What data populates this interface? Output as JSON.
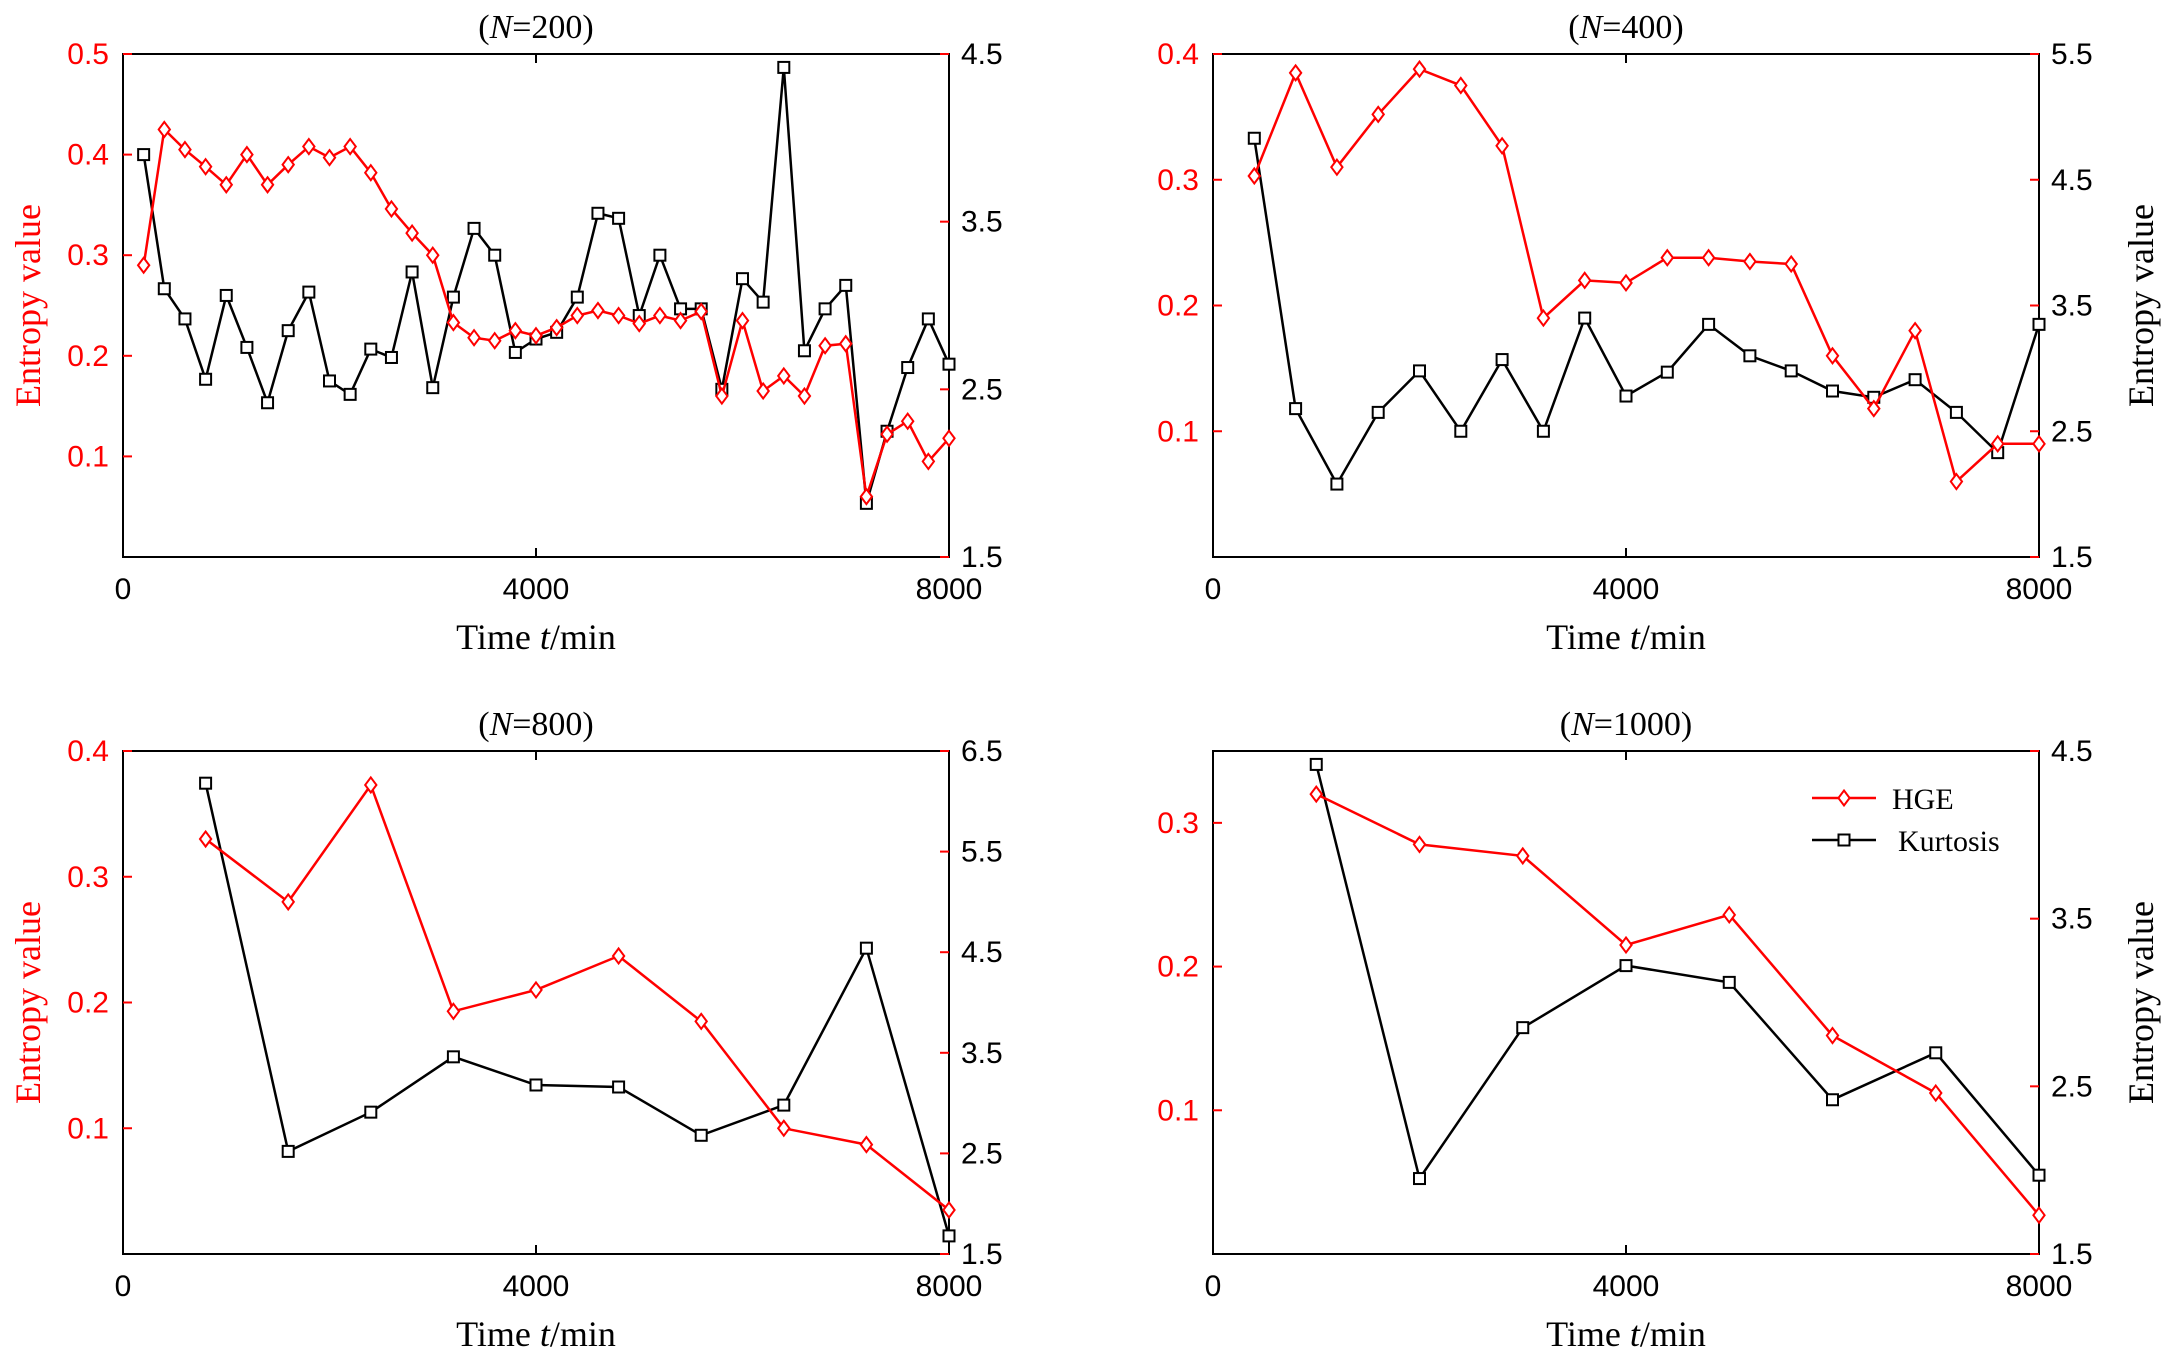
{
  "colors": {
    "hge": "#ff0000",
    "kurtosis": "#000000",
    "axis": "#000000"
  },
  "legend": {
    "placement": "top-right of N=1000 panel",
    "hge_label": "HGE",
    "kurtosis_label": "Kurtosis"
  },
  "chart_data": [
    {
      "type": "line",
      "title_prefix": "(",
      "title_italic": "N",
      "title_suffix": "=200)",
      "xlabel_pre": "Time ",
      "xlabel_italic": "t",
      "xlabel_post": "/min",
      "ylabel_left": "Entropy value",
      "ylabel_right": "",
      "xlim": [
        0,
        8000
      ],
      "xticks": [
        "0",
        "4000",
        "8000"
      ],
      "xtick_values": [
        0,
        4000,
        8000
      ],
      "ylim_left": [
        0,
        0.5
      ],
      "yticks_left": [
        "0.1",
        "0.2",
        "0.3",
        "0.4",
        "0.5"
      ],
      "ytick_values_left": [
        0.1,
        0.2,
        0.3,
        0.4,
        0.5
      ],
      "ylim_right": [
        1.5,
        4.5
      ],
      "yticks_right": [
        "1.5",
        "2.5",
        "3.5",
        "4.5"
      ],
      "ytick_values_right": [
        1.5,
        2.5,
        3.5,
        4.5
      ],
      "series": [
        {
          "name": "HGE",
          "axis": "left",
          "marker": "diamond",
          "x": [
            200,
            400,
            600,
            800,
            1000,
            1200,
            1400,
            1600,
            1800,
            2000,
            2200,
            2400,
            2600,
            2800,
            3000,
            3200,
            3400,
            3600,
            3800,
            4000,
            4200,
            4400,
            4600,
            4800,
            5000,
            5200,
            5400,
            5600,
            5800,
            6000,
            6200,
            6400,
            6600,
            6800,
            7000,
            7200,
            7400,
            7600,
            7800,
            8000
          ],
          "values": [
            0.29,
            0.425,
            0.405,
            0.388,
            0.37,
            0.4,
            0.37,
            0.39,
            0.408,
            0.397,
            0.408,
            0.382,
            0.346,
            0.322,
            0.3,
            0.233,
            0.218,
            0.215,
            0.225,
            0.22,
            0.228,
            0.24,
            0.245,
            0.24,
            0.232,
            0.24,
            0.235,
            0.244,
            0.16,
            0.235,
            0.165,
            0.18,
            0.16,
            0.21,
            0.212,
            0.06,
            0.122,
            0.135,
            0.095,
            0.118
          ]
        },
        {
          "name": "Kurtosis",
          "axis": "right",
          "marker": "square",
          "x": [
            200,
            400,
            600,
            800,
            1000,
            1200,
            1400,
            1600,
            1800,
            2000,
            2200,
            2400,
            2600,
            2800,
            3000,
            3200,
            3400,
            3600,
            3800,
            4000,
            4200,
            4400,
            4600,
            4800,
            5000,
            5200,
            5400,
            5600,
            5800,
            6000,
            6200,
            6400,
            6600,
            6800,
            7000,
            7200,
            7400,
            7600,
            7800,
            8000
          ],
          "values": [
            3.9,
            3.1,
            2.92,
            2.56,
            3.06,
            2.75,
            2.42,
            2.85,
            3.08,
            2.55,
            2.47,
            2.74,
            2.69,
            3.2,
            2.51,
            3.05,
            3.46,
            3.3,
            2.72,
            2.8,
            2.84,
            3.05,
            3.55,
            3.52,
            2.94,
            3.3,
            2.98,
            2.98,
            2.5,
            3.16,
            3.02,
            4.42,
            2.73,
            2.98,
            3.12,
            1.82,
            2.25,
            2.63,
            2.92,
            2.65
          ]
        }
      ]
    },
    {
      "type": "line",
      "title_prefix": "(",
      "title_italic": "N",
      "title_suffix": "=400)",
      "xlabel_pre": "Time ",
      "xlabel_italic": "t",
      "xlabel_post": "/min",
      "ylabel_left": "",
      "ylabel_right": "Entropy value",
      "xlim": [
        0,
        8000
      ],
      "xticks": [
        "0",
        "4000",
        "8000"
      ],
      "xtick_values": [
        0,
        4000,
        8000
      ],
      "ylim_left": [
        0,
        0.4
      ],
      "yticks_left": [
        "0.1",
        "0.2",
        "0.3",
        "0.4"
      ],
      "ytick_values_left": [
        0.1,
        0.2,
        0.3,
        0.4
      ],
      "ylim_right": [
        1.5,
        5.5
      ],
      "yticks_right": [
        "1.5",
        "2.5",
        "3.5",
        "4.5",
        "5.5"
      ],
      "ytick_values_right": [
        1.5,
        2.5,
        3.5,
        4.5,
        5.5
      ],
      "series": [
        {
          "name": "HGE",
          "axis": "left",
          "marker": "diamond",
          "x": [
            400,
            800,
            1200,
            1600,
            2000,
            2400,
            2800,
            3200,
            3600,
            4000,
            4400,
            4800,
            5200,
            5600,
            6000,
            6400,
            6800,
            7200,
            7600,
            8000
          ],
          "values": [
            0.303,
            0.385,
            0.31,
            0.352,
            0.388,
            0.375,
            0.327,
            0.19,
            0.22,
            0.218,
            0.238,
            0.238,
            0.235,
            0.233,
            0.16,
            0.118,
            0.18,
            0.06,
            0.09,
            0.09
          ]
        },
        {
          "name": "Kurtosis",
          "axis": "right",
          "marker": "square",
          "x": [
            400,
            800,
            1200,
            1600,
            2000,
            2400,
            2800,
            3200,
            3600,
            4000,
            4400,
            4800,
            5200,
            5600,
            6000,
            6400,
            6800,
            7200,
            7600,
            8000
          ],
          "values": [
            4.83,
            2.68,
            2.08,
            2.65,
            2.98,
            2.5,
            3.07,
            2.5,
            3.4,
            2.78,
            2.97,
            3.35,
            3.1,
            2.98,
            2.82,
            2.77,
            2.91,
            2.65,
            2.33,
            3.35
          ]
        }
      ]
    },
    {
      "type": "line",
      "title_prefix": "(",
      "title_italic": "N",
      "title_suffix": "=800)",
      "xlabel_pre": "Time ",
      "xlabel_italic": "t",
      "xlabel_post": "/min",
      "ylabel_left": "Entropy value",
      "ylabel_right": "",
      "xlim": [
        0,
        8000
      ],
      "xticks": [
        "0",
        "4000",
        "8000"
      ],
      "xtick_values": [
        0,
        4000,
        8000
      ],
      "ylim_left": [
        0,
        0.4
      ],
      "yticks_left": [
        "0.1",
        "0.2",
        "0.3",
        "0.4"
      ],
      "ytick_values_left": [
        0.1,
        0.2,
        0.3,
        0.4
      ],
      "ylim_right": [
        1.5,
        6.5
      ],
      "yticks_right": [
        "1.5",
        "2.5",
        "3.5",
        "4.5",
        "5.5",
        "6.5"
      ],
      "ytick_values_right": [
        1.5,
        2.5,
        3.5,
        4.5,
        5.5,
        6.5
      ],
      "series": [
        {
          "name": "HGE",
          "axis": "left",
          "marker": "diamond",
          "x": [
            800,
            1600,
            2400,
            3200,
            4000,
            4800,
            5600,
            6400,
            7200,
            8000
          ],
          "values": [
            0.33,
            0.28,
            0.373,
            0.193,
            0.21,
            0.237,
            0.185,
            0.1,
            0.087,
            0.035
          ]
        },
        {
          "name": "Kurtosis",
          "axis": "right",
          "marker": "square",
          "x": [
            800,
            1600,
            2400,
            3200,
            4000,
            4800,
            5600,
            6400,
            7200,
            8000
          ],
          "values": [
            6.18,
            2.52,
            2.91,
            3.46,
            3.18,
            3.16,
            2.68,
            2.98,
            4.54,
            1.68
          ]
        }
      ]
    },
    {
      "type": "line",
      "title_prefix": "(",
      "title_italic": "N",
      "title_suffix": "=1000)",
      "xlabel_pre": "Time ",
      "xlabel_italic": "t",
      "xlabel_post": "/min",
      "ylabel_left": "",
      "ylabel_right": "Entropy value",
      "xlim": [
        0,
        8000
      ],
      "xticks": [
        "0",
        "4000",
        "8000"
      ],
      "xtick_values": [
        0,
        4000,
        8000
      ],
      "ylim_left": [
        0,
        0.35
      ],
      "yticks_left": [
        "0.1",
        "0.2",
        "0.3"
      ],
      "ytick_values_left": [
        0.1,
        0.2,
        0.3
      ],
      "ylim_right": [
        1.5,
        4.5
      ],
      "yticks_right": [
        "1.5",
        "2.5",
        "3.5",
        "4.5"
      ],
      "ytick_values_right": [
        1.5,
        2.5,
        3.5,
        4.5
      ],
      "series": [
        {
          "name": "HGE",
          "axis": "left",
          "marker": "diamond",
          "x": [
            1000,
            2000,
            3000,
            4000,
            5000,
            6000,
            7000,
            8000
          ],
          "values": [
            0.32,
            0.285,
            0.277,
            0.215,
            0.236,
            0.152,
            0.112,
            0.027
          ]
        },
        {
          "name": "Kurtosis",
          "axis": "right",
          "marker": "square",
          "x": [
            1000,
            2000,
            3000,
            4000,
            5000,
            6000,
            7000,
            8000
          ],
          "values": [
            4.42,
            1.95,
            2.85,
            3.22,
            3.12,
            2.42,
            2.7,
            1.97
          ]
        }
      ]
    }
  ]
}
